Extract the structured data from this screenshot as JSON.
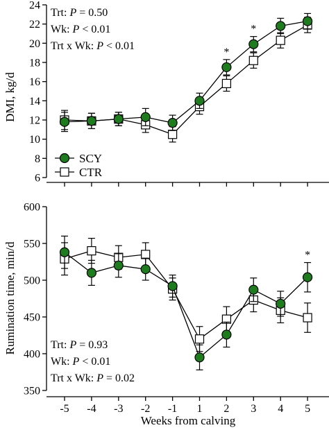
{
  "chart_data": [
    {
      "type": "line",
      "panel": "top",
      "ylabel": "DMI, kg/d",
      "xlabel": "",
      "ylim": [
        6,
        24
      ],
      "yticks": [
        6,
        8,
        10,
        12,
        14,
        16,
        18,
        20,
        22,
        24
      ],
      "x": [
        -5,
        -4,
        -3,
        -2,
        -1,
        1,
        2,
        3,
        4,
        5
      ],
      "xtick_labels": [
        "-5",
        "-4",
        "-3",
        "-2",
        "-1",
        "1",
        "2",
        "3",
        "4",
        "5"
      ],
      "series": [
        {
          "name": "SCY",
          "marker": "filled-circle",
          "color": "#1e7b1e",
          "values": [
            11.8,
            11.9,
            12.1,
            12.3,
            11.7,
            14.0,
            17.5,
            19.9,
            21.8,
            22.3
          ],
          "errors": [
            1.0,
            0.8,
            0.7,
            0.9,
            0.8,
            0.8,
            0.8,
            0.8,
            0.8,
            0.8
          ]
        },
        {
          "name": "CTR",
          "marker": "open-square",
          "color": "#ffffff",
          "values": [
            12.0,
            11.9,
            12.1,
            11.5,
            10.5,
            13.4,
            15.8,
            18.2,
            20.3,
            21.9
          ],
          "errors": [
            1.0,
            0.8,
            0.7,
            0.8,
            0.8,
            0.8,
            0.8,
            0.8,
            0.8,
            0.8
          ]
        }
      ],
      "significance": [
        {
          "x": 2,
          "label": "*"
        },
        {
          "x": 3,
          "label": "*"
        }
      ],
      "stats": {
        "trt_label": "Trt: ",
        "trt_p": "P",
        "trt_value": " = 0.50",
        "wk_label": "Wk: ",
        "wk_p": "P",
        "wk_value": " < 0.01",
        "int_label": "Trt x Wk: ",
        "int_p": "P",
        "int_value": " < 0.01"
      },
      "legend": {
        "placement": "bottom-left",
        "items": [
          "SCY",
          "CTR"
        ]
      }
    },
    {
      "type": "line",
      "panel": "bottom",
      "ylabel": "Rumination time, min/d",
      "xlabel": "Weeks from calving",
      "ylim": [
        350,
        600
      ],
      "yticks": [
        350,
        400,
        450,
        500,
        550,
        600
      ],
      "x": [
        -5,
        -4,
        -3,
        -2,
        -1,
        1,
        2,
        3,
        4,
        5
      ],
      "xtick_labels": [
        "-5",
        "-4",
        "-3",
        "-2",
        "-1",
        "1",
        "2",
        "3",
        "4",
        "5"
      ],
      "series": [
        {
          "name": "SCY",
          "marker": "filled-circle",
          "color": "#1e7b1e",
          "values": [
            538,
            510,
            520,
            515,
            492,
            395,
            426,
            487,
            468,
            504
          ],
          "errors": [
            22,
            17,
            16,
            15,
            15,
            17,
            17,
            16,
            17,
            20
          ]
        },
        {
          "name": "CTR",
          "marker": "open-square",
          "color": "#ffffff",
          "values": [
            529,
            540,
            531,
            535,
            488,
            420,
            447,
            473,
            459,
            449
          ],
          "errors": [
            22,
            17,
            16,
            16,
            15,
            17,
            17,
            16,
            17,
            20
          ]
        }
      ],
      "significance": [
        {
          "x": 5,
          "label": "*"
        }
      ],
      "stats": {
        "trt_label": "Trt: ",
        "trt_p": "P",
        "trt_value": " = 0.93",
        "wk_label": "Wk: ",
        "wk_p": "P",
        "wk_value": " < 0.01",
        "int_label": "Trt x Wk: ",
        "int_p": "P",
        "int_value": " = 0.02"
      }
    }
  ]
}
